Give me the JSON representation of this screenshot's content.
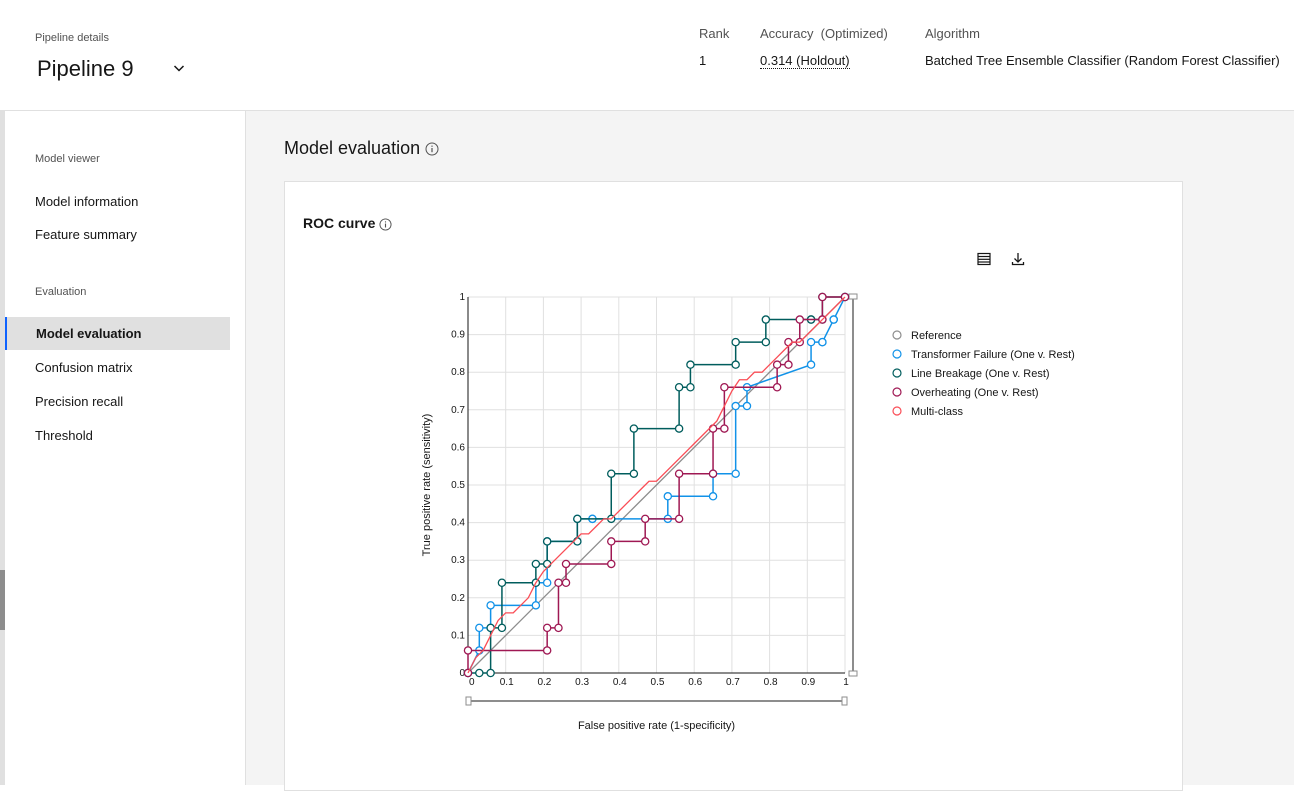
{
  "header": {
    "caption": "Pipeline details",
    "pipeline_name": "Pipeline 9",
    "rank_label": "Rank",
    "rank_value": "1",
    "accuracy_label": "Accuracy  (Optimized)",
    "accuracy_value": "0.314 (Holdout)",
    "algorithm_label": "Algorithm",
    "algorithm_value": "Batched Tree Ensemble Classifier (Random Forest Classifier)"
  },
  "sidebar": {
    "section1": "Model viewer",
    "items1": [
      "Model information",
      "Feature summary"
    ],
    "section2": "Evaluation",
    "active_item": "Model evaluation",
    "items2": [
      "Confusion matrix",
      "Precision recall",
      "Threshold"
    ]
  },
  "main": {
    "title": "Model evaluation",
    "card_title": "ROC curve",
    "icons": [
      "info-icon",
      "table-icon",
      "download-icon",
      "chevron-down-icon"
    ]
  },
  "chart_data": {
    "type": "line",
    "title": "ROC curve",
    "xlabel": "False positive rate (1-specificity)",
    "ylabel": "True positive rate (sensitivity)",
    "xlim": [
      0,
      1
    ],
    "ylim": [
      0,
      1
    ],
    "xticks": [
      "0",
      "0.1",
      "0.2",
      "0.3",
      "0.4",
      "0.5",
      "0.6",
      "0.7",
      "0.8",
      "0.9",
      "1"
    ],
    "yticks": [
      "0",
      "0.1",
      "0.2",
      "0.3",
      "0.4",
      "0.5",
      "0.6",
      "0.7",
      "0.8",
      "0.9",
      "1"
    ],
    "grid": true,
    "legend_position": "right",
    "series": [
      {
        "name": "Reference",
        "color": "#8d8d8d",
        "markers": false,
        "x": [
          0,
          1
        ],
        "y": [
          0,
          1
        ]
      },
      {
        "name": "Transformer Failure (One v. Rest)",
        "color": "#1192e8",
        "markers": true,
        "x": [
          0,
          0.03,
          0.03,
          0.06,
          0.06,
          0.18,
          0.18,
          0.21,
          0.21,
          0.29,
          0.29,
          0.33,
          0.33,
          0.53,
          0.53,
          0.65,
          0.65,
          0.71,
          0.71,
          0.74,
          0.74,
          0.91,
          0.91,
          0.94,
          0.94,
          0.97,
          0.97,
          1
        ],
        "y": [
          0,
          0.06,
          0.12,
          0.12,
          0.18,
          0.18,
          0.24,
          0.24,
          0.35,
          0.35,
          0.41,
          0.41,
          0.41,
          0.41,
          0.47,
          0.47,
          0.53,
          0.53,
          0.71,
          0.71,
          0.76,
          0.82,
          0.88,
          0.88,
          0.88,
          0.94,
          0.94,
          1
        ]
      },
      {
        "name": "Line Breakage (One v. Rest)",
        "color": "#005d5d",
        "markers": true,
        "x": [
          0,
          0.03,
          0.06,
          0.06,
          0.09,
          0.09,
          0.18,
          0.18,
          0.21,
          0.21,
          0.29,
          0.29,
          0.38,
          0.38,
          0.44,
          0.44,
          0.56,
          0.56,
          0.59,
          0.59,
          0.71,
          0.71,
          0.79,
          0.79,
          0.91,
          0.91,
          0.94,
          0.94,
          1
        ],
        "y": [
          0,
          0,
          0,
          0.12,
          0.12,
          0.24,
          0.24,
          0.29,
          0.29,
          0.35,
          0.35,
          0.41,
          0.41,
          0.53,
          0.53,
          0.65,
          0.65,
          0.76,
          0.76,
          0.82,
          0.82,
          0.88,
          0.88,
          0.94,
          0.94,
          0.94,
          0.94,
          1,
          1
        ]
      },
      {
        "name": "Overheating (One v. Rest)",
        "color": "#9f1853",
        "markers": true,
        "x": [
          0,
          0,
          0.21,
          0.21,
          0.24,
          0.24,
          0.26,
          0.26,
          0.38,
          0.38,
          0.47,
          0.47,
          0.56,
          0.56,
          0.65,
          0.65,
          0.68,
          0.68,
          0.82,
          0.82,
          0.85,
          0.85,
          0.88,
          0.88,
          0.94,
          0.94,
          1
        ],
        "y": [
          0,
          0.06,
          0.06,
          0.12,
          0.12,
          0.24,
          0.24,
          0.29,
          0.29,
          0.35,
          0.35,
          0.41,
          0.41,
          0.53,
          0.53,
          0.65,
          0.65,
          0.76,
          0.76,
          0.82,
          0.82,
          0.88,
          0.88,
          0.94,
          0.94,
          1,
          1
        ]
      },
      {
        "name": "Multi-class",
        "color": "#fa4d56",
        "markers": false,
        "x": [
          0,
          0.02,
          0.04,
          0.06,
          0.08,
          0.1,
          0.12,
          0.14,
          0.16,
          0.18,
          0.2,
          0.22,
          0.24,
          0.26,
          0.28,
          0.3,
          0.32,
          0.34,
          0.36,
          0.38,
          0.4,
          0.42,
          0.44,
          0.46,
          0.48,
          0.5,
          0.52,
          0.54,
          0.56,
          0.58,
          0.6,
          0.62,
          0.64,
          0.66,
          0.68,
          0.7,
          0.72,
          0.74,
          0.76,
          0.78,
          0.8,
          0.82,
          0.84,
          0.86,
          0.88,
          0.9,
          0.92,
          0.94,
          0.96,
          0.98,
          1
        ],
        "y": [
          0,
          0.04,
          0.06,
          0.1,
          0.14,
          0.16,
          0.16,
          0.18,
          0.2,
          0.24,
          0.27,
          0.29,
          0.31,
          0.33,
          0.35,
          0.37,
          0.37,
          0.39,
          0.41,
          0.41,
          0.43,
          0.45,
          0.47,
          0.49,
          0.51,
          0.51,
          0.53,
          0.55,
          0.57,
          0.59,
          0.61,
          0.63,
          0.65,
          0.67,
          0.71,
          0.75,
          0.78,
          0.78,
          0.8,
          0.8,
          0.82,
          0.84,
          0.86,
          0.88,
          0.88,
          0.9,
          0.92,
          0.94,
          0.96,
          0.98,
          1
        ]
      }
    ]
  }
}
